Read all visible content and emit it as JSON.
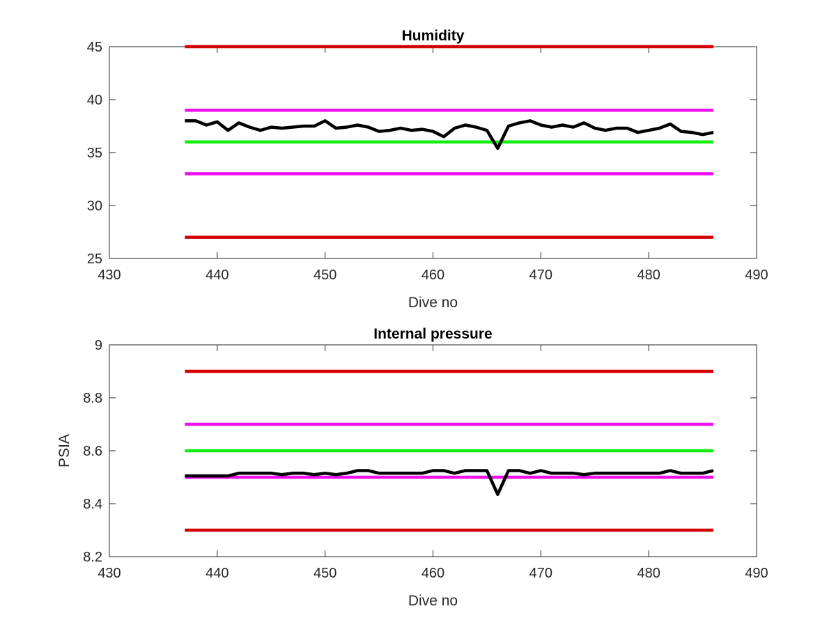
{
  "chart_data": [
    {
      "type": "line",
      "title": "Humidity",
      "xlabel": "Dive no",
      "ylabel": "",
      "xlim": [
        430,
        490
      ],
      "ylim": [
        25,
        45
      ],
      "xticks": [
        "430",
        "440",
        "450",
        "460",
        "470",
        "480",
        "490"
      ],
      "yticks": [
        "25",
        "30",
        "35",
        "40",
        "45"
      ],
      "grid": false,
      "legend": "none",
      "reference_lines": [
        {
          "y": 45,
          "x": [
            437,
            486
          ],
          "color": "#d40000"
        },
        {
          "y": 39,
          "x": [
            437,
            486
          ],
          "color": "#ee11ee"
        },
        {
          "y": 36,
          "x": [
            437,
            486
          ],
          "color": "#11ee11"
        },
        {
          "y": 33,
          "x": [
            437,
            486
          ],
          "color": "#ee11ee"
        },
        {
          "y": 27,
          "x": [
            437,
            486
          ],
          "color": "#d40000"
        }
      ],
      "series": [
        {
          "color": "#000000",
          "x": [
            437,
            438,
            439,
            440,
            441,
            442,
            443,
            444,
            445,
            446,
            447,
            448,
            449,
            450,
            451,
            452,
            453,
            454,
            455,
            456,
            457,
            458,
            459,
            460,
            461,
            462,
            463,
            464,
            465,
            466,
            467,
            468,
            469,
            470,
            471,
            472,
            473,
            474,
            475,
            476,
            477,
            478,
            479,
            480,
            481,
            482,
            483,
            484,
            485,
            486
          ],
          "y": [
            38.0,
            38.0,
            37.6,
            37.9,
            37.1,
            37.8,
            37.4,
            37.1,
            37.4,
            37.3,
            37.4,
            37.5,
            37.5,
            38.0,
            37.3,
            37.4,
            37.6,
            37.4,
            37.0,
            37.1,
            37.3,
            37.1,
            37.2,
            37.0,
            36.5,
            37.3,
            37.6,
            37.4,
            37.1,
            35.4,
            37.5,
            37.8,
            38.0,
            37.6,
            37.4,
            37.6,
            37.4,
            37.8,
            37.3,
            37.1,
            37.3,
            37.3,
            36.9,
            37.1,
            37.3,
            37.7,
            37.0,
            36.9,
            36.7,
            36.9
          ]
        }
      ]
    },
    {
      "type": "line",
      "title": "Internal pressure",
      "xlabel": "Dive no",
      "ylabel": "PSIA",
      "xlim": [
        430,
        490
      ],
      "ylim": [
        8.2,
        9.0
      ],
      "xticks": [
        "430",
        "440",
        "450",
        "460",
        "470",
        "480",
        "490"
      ],
      "yticks": [
        "8.2",
        "8.4",
        "8.6",
        "8.8",
        "9"
      ],
      "grid": false,
      "legend": "none",
      "reference_lines": [
        {
          "y": 8.9,
          "x": [
            437,
            486
          ],
          "color": "#d40000"
        },
        {
          "y": 8.7,
          "x": [
            437,
            486
          ],
          "color": "#ee11ee"
        },
        {
          "y": 8.6,
          "x": [
            437,
            486
          ],
          "color": "#11ee11"
        },
        {
          "y": 8.5,
          "x": [
            437,
            486
          ],
          "color": "#ee11ee"
        },
        {
          "y": 8.3,
          "x": [
            437,
            486
          ],
          "color": "#d40000"
        }
      ],
      "series": [
        {
          "color": "#000000",
          "x": [
            437,
            438,
            439,
            440,
            441,
            442,
            443,
            444,
            445,
            446,
            447,
            448,
            449,
            450,
            451,
            452,
            453,
            454,
            455,
            456,
            457,
            458,
            459,
            460,
            461,
            462,
            463,
            464,
            465,
            466,
            467,
            468,
            469,
            470,
            471,
            472,
            473,
            474,
            475,
            476,
            477,
            478,
            479,
            480,
            481,
            482,
            483,
            484,
            485,
            486
          ],
          "y": [
            8.505,
            8.505,
            8.505,
            8.505,
            8.505,
            8.515,
            8.515,
            8.515,
            8.515,
            8.51,
            8.515,
            8.515,
            8.51,
            8.515,
            8.51,
            8.515,
            8.525,
            8.525,
            8.515,
            8.515,
            8.515,
            8.515,
            8.515,
            8.525,
            8.525,
            8.515,
            8.525,
            8.525,
            8.525,
            8.435,
            8.525,
            8.525,
            8.515,
            8.525,
            8.515,
            8.515,
            8.515,
            8.51,
            8.515,
            8.515,
            8.515,
            8.515,
            8.515,
            8.515,
            8.515,
            8.525,
            8.515,
            8.515,
            8.515,
            8.525
          ]
        }
      ]
    }
  ]
}
